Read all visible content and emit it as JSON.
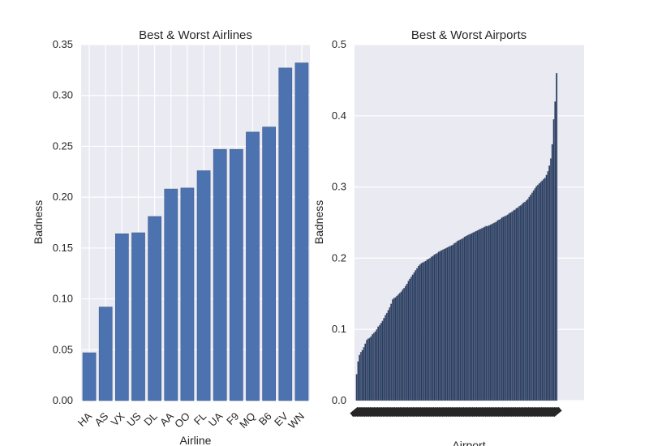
{
  "chart_data": [
    {
      "type": "bar",
      "title": "Best & Worst Airlines",
      "xlabel": "Airline",
      "ylabel": "Badness",
      "ylim": [
        0,
        0.35
      ],
      "yticks": [
        "0.00",
        "0.05",
        "0.10",
        "0.15",
        "0.20",
        "0.25",
        "0.30",
        "0.35"
      ],
      "grid": true,
      "bar_color": "#4c72b0",
      "categories": [
        "HA",
        "AS",
        "VX",
        "US",
        "DL",
        "AA",
        "OO",
        "FL",
        "UA",
        "F9",
        "MQ",
        "B6",
        "EV",
        "WN"
      ],
      "values": [
        0.047,
        0.092,
        0.164,
        0.165,
        0.181,
        0.208,
        0.209,
        0.226,
        0.247,
        0.247,
        0.264,
        0.269,
        0.327,
        0.332
      ]
    },
    {
      "type": "bar",
      "title": "Best & Worst Airports",
      "xlabel": "Airport",
      "ylabel": "Badness",
      "ylim": [
        0,
        0.5
      ],
      "yticks": [
        "0.0",
        "0.1",
        "0.2",
        "0.3",
        "0.4",
        "0.5"
      ],
      "grid": true,
      "bar_color": "#283d63",
      "values": [
        0.0,
        0.037,
        0.055,
        0.064,
        0.068,
        0.071,
        0.075,
        0.08,
        0.085,
        0.087,
        0.088,
        0.09,
        0.093,
        0.095,
        0.097,
        0.1,
        0.104,
        0.106,
        0.109,
        0.112,
        0.116,
        0.12,
        0.123,
        0.127,
        0.131,
        0.136,
        0.142,
        0.144,
        0.145,
        0.147,
        0.149,
        0.151,
        0.153,
        0.156,
        0.158,
        0.161,
        0.164,
        0.168,
        0.171,
        0.174,
        0.177,
        0.18,
        0.183,
        0.186,
        0.189,
        0.191,
        0.193,
        0.194,
        0.195,
        0.196,
        0.198,
        0.199,
        0.2,
        0.202,
        0.203,
        0.205,
        0.206,
        0.207,
        0.209,
        0.21,
        0.211,
        0.212,
        0.213,
        0.214,
        0.215,
        0.216,
        0.217,
        0.218,
        0.219,
        0.221,
        0.222,
        0.224,
        0.225,
        0.226,
        0.227,
        0.228,
        0.23,
        0.231,
        0.232,
        0.233,
        0.234,
        0.235,
        0.236,
        0.237,
        0.238,
        0.239,
        0.24,
        0.241,
        0.242,
        0.243,
        0.244,
        0.245,
        0.245,
        0.246,
        0.247,
        0.248,
        0.249,
        0.25,
        0.251,
        0.253,
        0.254,
        0.255,
        0.257,
        0.258,
        0.259,
        0.26,
        0.261,
        0.263,
        0.264,
        0.265,
        0.267,
        0.268,
        0.27,
        0.271,
        0.273,
        0.274,
        0.276,
        0.278,
        0.279,
        0.281,
        0.283,
        0.286,
        0.289,
        0.292,
        0.295,
        0.298,
        0.301,
        0.303,
        0.305,
        0.307,
        0.309,
        0.311,
        0.313,
        0.317,
        0.322,
        0.33,
        0.34,
        0.36,
        0.395,
        0.42,
        0.46
      ]
    }
  ]
}
